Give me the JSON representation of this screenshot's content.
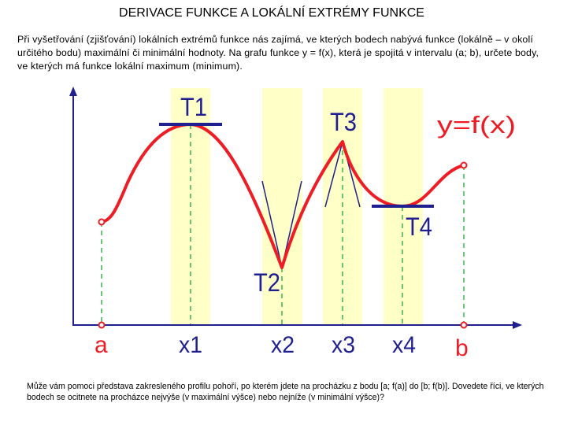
{
  "title": "DERIVACE FUNKCE A LOKÁLNÍ EXTRÉMY FUNKCE",
  "intro_text": "Při vyšetřování (zjišťování) lokálních extrémů funkce nás zajímá, ve kterých bodech nabývá funkce (lokálně – v okolí určitého bodu) maximální či minimální hodnoty.  Na grafu funkce y = f(x), která je spojitá v intervalu (a; b), určete body, ve kterých má funkce lokální maximum (minimum).",
  "graph": {
    "function_label": "y=f(x)",
    "x_labels": {
      "a": "a",
      "x1": "x1",
      "x2": "x2",
      "x3": "x3",
      "x4": "x4",
      "b": "b"
    },
    "point_labels": {
      "t1": "T1",
      "t2": "T2",
      "t3": "T3",
      "t4": "T4"
    },
    "colors": {
      "curve": "#ee1c24",
      "axes": "#1f1f8f",
      "tangent": "#1f1f8f",
      "highlight": "#ffffc8",
      "dashed": "#3cb44b",
      "x_label": "#1f1f8f",
      "endpoint_label": "#ee1c24"
    }
  },
  "question_text": "Může vám pomoci představa zakresleného profilu pohoří, po kterém jdete na procházku z bodu [a; f(a)] do [b; f(b)]. Dovedete říci, ve kterých bodech se ocitnete na procházce nejvýše (v maximální výšce) nebo nejníže (v minimální výšce)?"
}
